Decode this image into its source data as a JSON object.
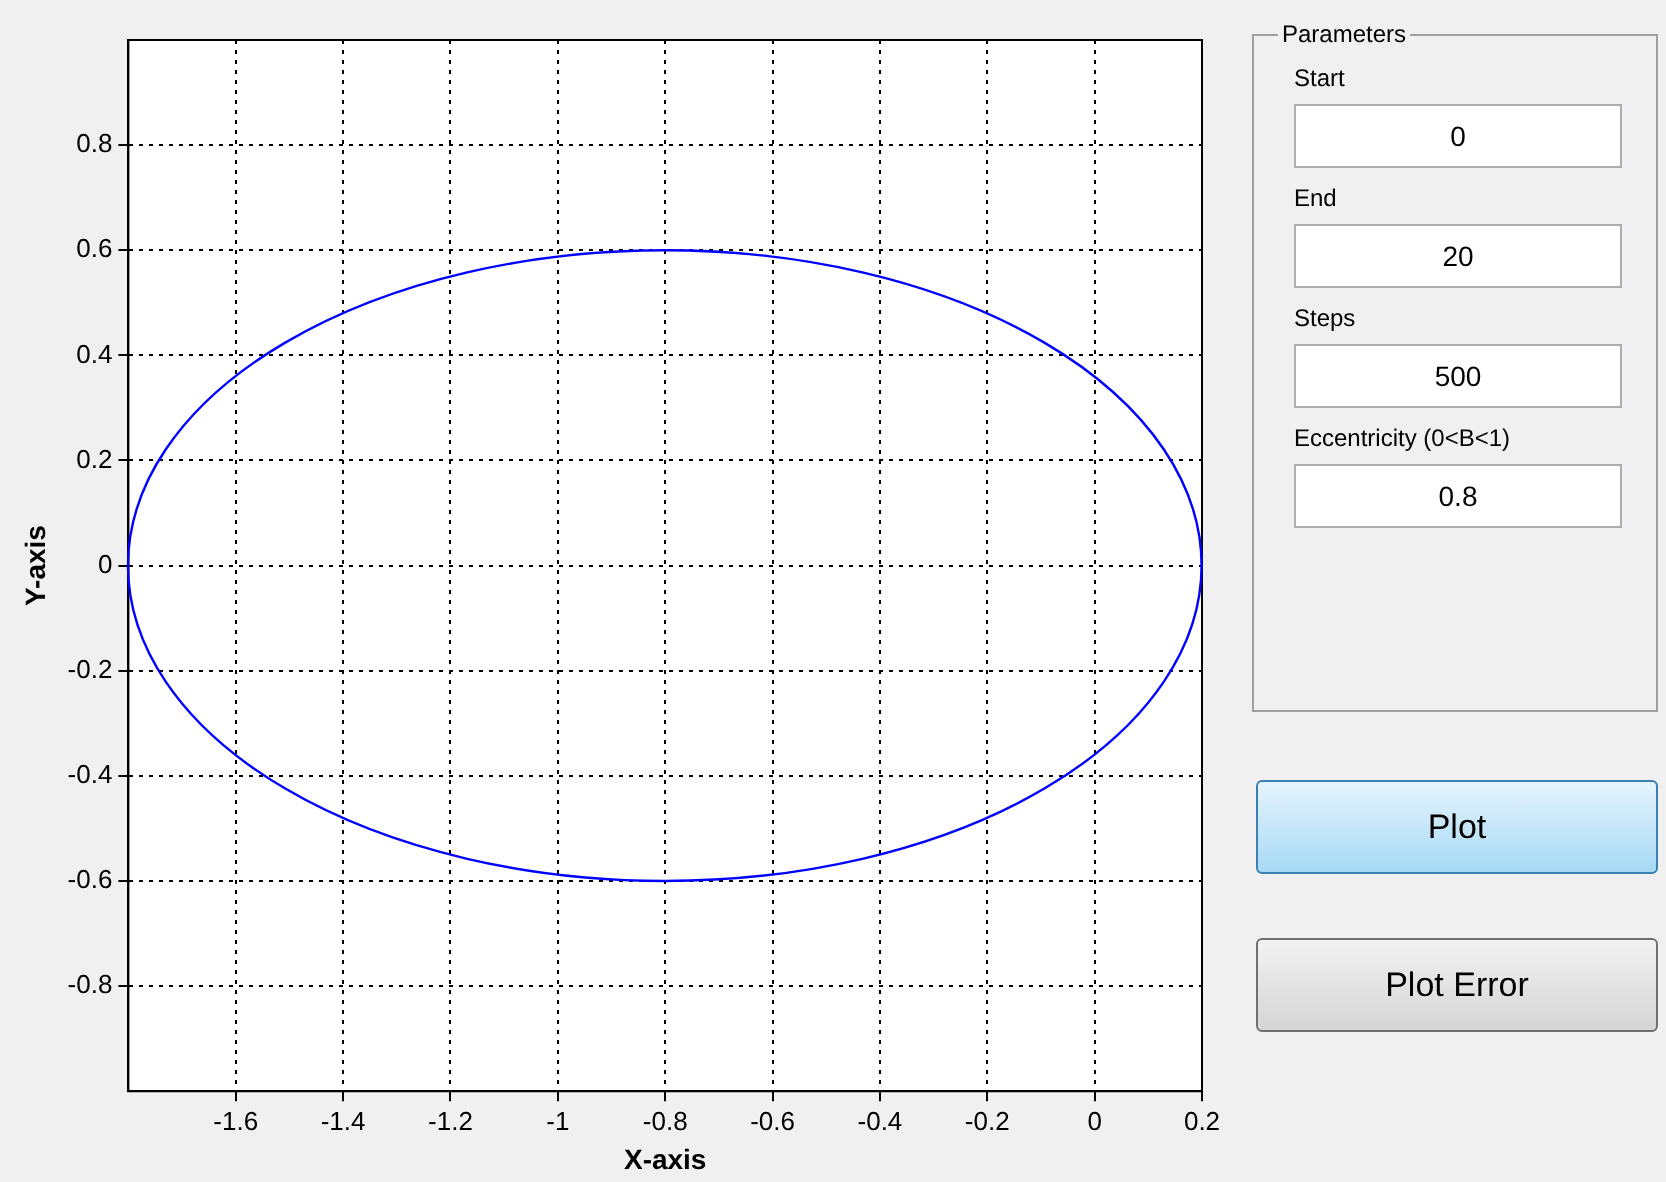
{
  "chart_data": {
    "type": "line",
    "xlabel": "X-axis",
    "ylabel": "Y-axis",
    "xlim": [
      -1.8,
      0.2
    ],
    "ylim": [
      -1,
      1
    ],
    "xticks": [
      -1.6,
      -1.4,
      -1.2,
      -1,
      -0.8,
      -0.6,
      -0.4,
      -0.2,
      0,
      0.2
    ],
    "yticks": [
      -0.8,
      -0.6,
      -0.4,
      -0.2,
      0,
      0.2,
      0.4,
      0.6,
      0.8
    ],
    "grid": true,
    "legend": false,
    "annotations": [
      "Parameters",
      "Start",
      "0",
      "End",
      "20",
      "Steps",
      "500",
      "Eccentricity (0<B<1)",
      "0.8",
      "Plot",
      "Plot Error"
    ]
  }
}
